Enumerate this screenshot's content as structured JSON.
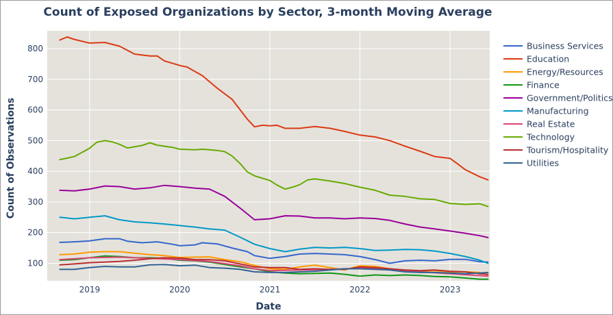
{
  "chart_data": {
    "type": "line",
    "title": "Count of Exposed Organizations by Sector, 3-month Moving Average",
    "xlabel": "Date",
    "ylabel": "Count of Observations",
    "x_tick_labels": [
      "2019",
      "2020",
      "2021",
      "2022",
      "2023"
    ],
    "x_tick_values": [
      2019.0,
      2020.0,
      2021.0,
      2022.0,
      2023.0
    ],
    "xlim": [
      2018.53,
      2023.44
    ],
    "y_ticks": [
      100,
      200,
      300,
      400,
      500,
      600,
      700,
      800
    ],
    "ylim": [
      43,
      858
    ],
    "colors": {
      "plot_bg": "#e5e2dc",
      "grid": "#ffffff",
      "text": "#2a3f5f"
    },
    "series": [
      {
        "name": "Business Services",
        "color": "#3366cc",
        "x": [
          2018.67,
          2018.83,
          2019.0,
          2019.17,
          2019.33,
          2019.42,
          2019.58,
          2019.75,
          2019.92,
          2020.0,
          2020.17,
          2020.25,
          2020.42,
          2020.58,
          2020.75,
          2020.83,
          2021.0,
          2021.17,
          2021.33,
          2021.5,
          2021.67,
          2021.83,
          2022.0,
          2022.17,
          2022.33,
          2022.5,
          2022.67,
          2022.83,
          2023.0,
          2023.17,
          2023.33,
          2023.42
        ],
        "y": [
          168,
          170,
          173,
          180,
          180,
          172,
          167,
          170,
          162,
          157,
          160,
          167,
          163,
          150,
          138,
          125,
          116,
          122,
          130,
          132,
          130,
          128,
          122,
          112,
          100,
          108,
          110,
          108,
          113,
          113,
          105,
          104
        ]
      },
      {
        "name": "Education",
        "color": "#dc3912",
        "x": [
          2018.67,
          2018.75,
          2018.83,
          2019.0,
          2019.17,
          2019.33,
          2019.5,
          2019.67,
          2019.75,
          2019.83,
          2020.0,
          2020.08,
          2020.25,
          2020.42,
          2020.58,
          2020.75,
          2020.83,
          2020.92,
          2021.0,
          2021.08,
          2021.17,
          2021.33,
          2021.5,
          2021.67,
          2021.83,
          2022.0,
          2022.17,
          2022.33,
          2022.5,
          2022.67,
          2022.83,
          2023.0,
          2023.08,
          2023.17,
          2023.33,
          2023.42
        ],
        "y": [
          828,
          838,
          830,
          818,
          820,
          808,
          782,
          776,
          776,
          760,
          745,
          740,
          712,
          670,
          635,
          570,
          545,
          550,
          548,
          550,
          540,
          540,
          546,
          540,
          530,
          518,
          512,
          500,
          482,
          465,
          448,
          442,
          425,
          405,
          382,
          372
        ]
      },
      {
        "name": "Energy/Resources",
        "color": "#ff9900",
        "x": [
          2018.67,
          2018.83,
          2019.0,
          2019.17,
          2019.33,
          2019.5,
          2019.67,
          2019.83,
          2020.0,
          2020.17,
          2020.33,
          2020.5,
          2020.67,
          2020.83,
          2021.0,
          2021.17,
          2021.33,
          2021.5,
          2021.67,
          2021.83,
          2022.0,
          2022.17,
          2022.33,
          2022.5,
          2022.67,
          2022.83,
          2023.0,
          2023.17,
          2023.33,
          2023.42
        ],
        "y": [
          128,
          130,
          136,
          138,
          138,
          133,
          128,
          125,
          119,
          120,
          121,
          112,
          105,
          93,
          82,
          80,
          88,
          94,
          86,
          78,
          92,
          90,
          82,
          76,
          75,
          76,
          72,
          72,
          70,
          62
        ]
      },
      {
        "name": "Finance",
        "color": "#109618",
        "x": [
          2018.67,
          2018.83,
          2019.0,
          2019.17,
          2019.33,
          2019.5,
          2019.67,
          2019.83,
          2020.0,
          2020.17,
          2020.33,
          2020.5,
          2020.67,
          2020.83,
          2021.0,
          2021.17,
          2021.33,
          2021.5,
          2021.67,
          2021.83,
          2022.0,
          2022.17,
          2022.33,
          2022.5,
          2022.67,
          2022.83,
          2023.0,
          2023.17,
          2023.33,
          2023.42
        ],
        "y": [
          110,
          112,
          118,
          124,
          122,
          118,
          118,
          116,
          110,
          108,
          104,
          96,
          88,
          82,
          72,
          68,
          66,
          67,
          68,
          64,
          58,
          62,
          60,
          62,
          60,
          57,
          56,
          52,
          48,
          48
        ]
      },
      {
        "name": "Government/Politics",
        "color": "#990099",
        "x": [
          2018.67,
          2018.83,
          2019.0,
          2019.17,
          2019.33,
          2019.5,
          2019.67,
          2019.83,
          2020.0,
          2020.17,
          2020.33,
          2020.5,
          2020.67,
          2020.83,
          2021.0,
          2021.17,
          2021.33,
          2021.5,
          2021.67,
          2021.83,
          2022.0,
          2022.17,
          2022.33,
          2022.5,
          2022.67,
          2022.83,
          2023.0,
          2023.17,
          2023.33,
          2023.42
        ],
        "y": [
          338,
          336,
          342,
          352,
          350,
          342,
          346,
          354,
          350,
          345,
          342,
          318,
          280,
          242,
          245,
          255,
          254,
          248,
          248,
          245,
          248,
          246,
          240,
          228,
          218,
          212,
          205,
          198,
          190,
          184
        ]
      },
      {
        "name": "Manufacturing",
        "color": "#0099c6",
        "x": [
          2018.67,
          2018.83,
          2019.0,
          2019.17,
          2019.33,
          2019.5,
          2019.67,
          2019.83,
          2020.0,
          2020.17,
          2020.33,
          2020.5,
          2020.67,
          2020.83,
          2021.0,
          2021.17,
          2021.33,
          2021.5,
          2021.67,
          2021.83,
          2022.0,
          2022.17,
          2022.33,
          2022.5,
          2022.67,
          2022.83,
          2023.0,
          2023.17,
          2023.33,
          2023.42
        ],
        "y": [
          250,
          245,
          250,
          255,
          242,
          235,
          232,
          228,
          223,
          218,
          212,
          208,
          185,
          162,
          148,
          138,
          146,
          152,
          150,
          152,
          148,
          142,
          143,
          145,
          144,
          140,
          132,
          122,
          110,
          100
        ]
      },
      {
        "name": "Real Estate",
        "color": "#dd4477",
        "x": [
          2018.67,
          2019.0,
          2019.33,
          2019.67,
          2020.0,
          2020.33,
          2020.67,
          2020.83,
          2021.0,
          2021.33,
          2021.67,
          2022.0,
          2022.33,
          2022.67,
          2023.0,
          2023.42
        ],
        "y": [
          112,
          118,
          120,
          116,
          112,
          106,
          92,
          82,
          76,
          78,
          80,
          84,
          80,
          72,
          66,
          58
        ]
      },
      {
        "name": "Technology",
        "color": "#66aa00",
        "x": [
          2018.67,
          2018.83,
          2018.92,
          2019.0,
          2019.08,
          2019.17,
          2019.25,
          2019.33,
          2019.42,
          2019.58,
          2019.67,
          2019.75,
          2019.92,
          2020.0,
          2020.17,
          2020.25,
          2020.42,
          2020.5,
          2020.58,
          2020.67,
          2020.75,
          2020.83,
          2021.0,
          2021.08,
          2021.17,
          2021.25,
          2021.33,
          2021.42,
          2021.5,
          2021.67,
          2021.83,
          2022.0,
          2022.17,
          2022.33,
          2022.5,
          2022.67,
          2022.83,
          2023.0,
          2023.17,
          2023.33,
          2023.42
        ],
        "y": [
          438,
          448,
          462,
          475,
          495,
          500,
          496,
          488,
          476,
          484,
          493,
          485,
          478,
          472,
          470,
          472,
          468,
          464,
          450,
          425,
          398,
          385,
          370,
          355,
          342,
          348,
          356,
          372,
          375,
          368,
          360,
          348,
          338,
          322,
          318,
          310,
          308,
          295,
          292,
          294,
          285
        ]
      },
      {
        "name": "Tourism/Hospitality",
        "color": "#b82e2e",
        "x": [
          2018.67,
          2018.83,
          2019.0,
          2019.17,
          2019.33,
          2019.5,
          2019.67,
          2019.83,
          2020.0,
          2020.17,
          2020.33,
          2020.5,
          2020.67,
          2020.83,
          2021.0,
          2021.17,
          2021.33,
          2021.5,
          2021.67,
          2021.83,
          2022.0,
          2022.17,
          2022.33,
          2022.5,
          2022.67,
          2022.83,
          2023.0,
          2023.17,
          2023.33,
          2023.42
        ],
        "y": [
          95,
          98,
          102,
          104,
          106,
          110,
          115,
          118,
          117,
          112,
          112,
          108,
          98,
          88,
          86,
          86,
          80,
          82,
          80,
          80,
          88,
          86,
          82,
          78,
          76,
          78,
          74,
          72,
          66,
          64
        ]
      },
      {
        "name": "Utilities",
        "color": "#316395",
        "x": [
          2018.67,
          2018.83,
          2019.0,
          2019.17,
          2019.33,
          2019.5,
          2019.67,
          2019.83,
          2020.0,
          2020.17,
          2020.33,
          2020.5,
          2020.67,
          2020.83,
          2021.0,
          2021.17,
          2021.33,
          2021.5,
          2021.67,
          2021.83,
          2022.0,
          2022.17,
          2022.33,
          2022.5,
          2022.67,
          2022.83,
          2023.0,
          2023.17,
          2023.33,
          2023.42
        ],
        "y": [
          80,
          80,
          86,
          90,
          88,
          88,
          95,
          96,
          92,
          94,
          86,
          84,
          80,
          72,
          70,
          70,
          72,
          74,
          78,
          82,
          82,
          80,
          78,
          72,
          70,
          70,
          68,
          66,
          68,
          70
        ]
      }
    ]
  }
}
